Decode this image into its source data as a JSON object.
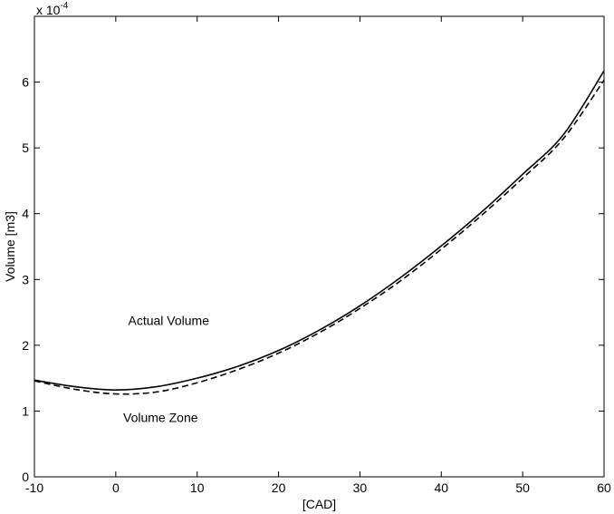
{
  "chart_data": {
    "type": "line",
    "title": "",
    "xlabel": "[CAD]",
    "ylabel": "Volume [m3]",
    "y_exponent_label": "x 10",
    "y_exponent_power": "-4",
    "xlim": [
      -10,
      60
    ],
    "ylim": [
      0,
      7
    ],
    "xticks": [
      -10,
      0,
      10,
      20,
      30,
      40,
      50,
      60
    ],
    "yticks": [
      0,
      1,
      2,
      3,
      4,
      5,
      6
    ],
    "grid": false,
    "series": [
      {
        "style": "solid",
        "color": "#000000",
        "x": [
          -10,
          -5,
          0,
          5,
          10,
          15,
          20,
          25,
          30,
          35,
          40,
          45,
          50,
          55,
          60
        ],
        "y": [
          1.47,
          1.37,
          1.32,
          1.37,
          1.5,
          1.68,
          1.92,
          2.23,
          2.6,
          3.03,
          3.51,
          4.03,
          4.6,
          5.2,
          6.17
        ]
      },
      {
        "style": "dashed",
        "color": "#000000",
        "x": [
          -10,
          -5,
          0,
          5,
          10,
          15,
          20,
          25,
          30,
          35,
          40,
          45,
          50,
          55,
          60
        ],
        "y": [
          1.46,
          1.33,
          1.26,
          1.29,
          1.43,
          1.63,
          1.88,
          2.19,
          2.56,
          2.98,
          3.46,
          3.98,
          4.54,
          5.14,
          6.03
        ]
      }
    ],
    "annotations": [
      {
        "text": "Actual Volume",
        "x": 6.5,
        "y": 2.38
      },
      {
        "text": "Volume Zone",
        "x": 5.5,
        "y": 0.9
      }
    ]
  }
}
